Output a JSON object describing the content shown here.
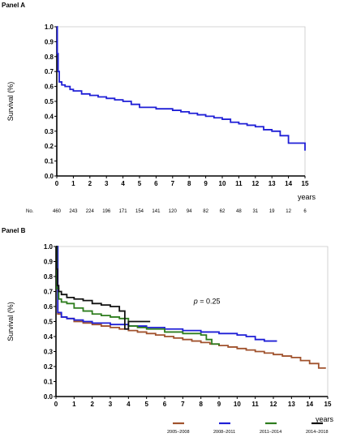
{
  "chart_data": [
    {
      "panel_label": "Panel A",
      "type": "line",
      "ylabel": "Survival (%)",
      "xlabel": "years",
      "xlim": [
        0,
        15
      ],
      "ylim": [
        0,
        1
      ],
      "x_ticks": [
        0,
        1,
        2,
        3,
        4,
        5,
        6,
        7,
        8,
        9,
        10,
        11,
        12,
        13,
        14,
        15
      ],
      "y_ticks": [
        0.0,
        0.1,
        0.2,
        0.3,
        0.4,
        0.5,
        0.6,
        0.7,
        0.8,
        0.9,
        1.0
      ],
      "colors": {
        "series": "#1f1fd6",
        "axis": "#000000",
        "frame": "#c8c8c8"
      },
      "series": [
        {
          "color": "#1f1fd6",
          "x": [
            0,
            0.03,
            0.08,
            0.15,
            0.3,
            0.5,
            0.8,
            1.0,
            1.5,
            2.0,
            2.5,
            3.0,
            3.5,
            4.0,
            4.5,
            5.0,
            6.0,
            7.0,
            7.5,
            8.0,
            8.5,
            9.0,
            9.5,
            10.0,
            10.5,
            11.0,
            11.5,
            12.0,
            12.5,
            13.0,
            13.5,
            14.0,
            14.5,
            14.9,
            15.0
          ],
          "y": [
            1.0,
            0.82,
            0.7,
            0.63,
            0.61,
            0.6,
            0.58,
            0.57,
            0.55,
            0.54,
            0.53,
            0.52,
            0.51,
            0.5,
            0.48,
            0.46,
            0.45,
            0.44,
            0.43,
            0.42,
            0.41,
            0.4,
            0.39,
            0.38,
            0.36,
            0.35,
            0.34,
            0.33,
            0.31,
            0.3,
            0.27,
            0.22,
            0.22,
            0.22,
            0.17
          ]
        }
      ],
      "risk_table": {
        "label": "No.",
        "x": [
          0,
          1,
          2,
          3,
          4,
          5,
          6,
          7,
          8,
          9,
          10,
          11,
          12,
          13,
          14,
          15
        ],
        "values": [
          "460",
          "243",
          "224",
          "196",
          "171",
          "154",
          "141",
          "120",
          "94",
          "82",
          "62",
          "48",
          "31",
          "19",
          "12",
          "6"
        ]
      }
    },
    {
      "panel_label": "Panel B",
      "type": "line",
      "ylabel": "Survival (%)",
      "xlabel": "years",
      "xlim": [
        0,
        15
      ],
      "ylim": [
        0,
        1
      ],
      "x_ticks": [
        0,
        1,
        2,
        3,
        4,
        5,
        6,
        7,
        8,
        9,
        10,
        11,
        12,
        13,
        14,
        15
      ],
      "y_ticks": [
        0.0,
        0.1,
        0.2,
        0.3,
        0.4,
        0.5,
        0.6,
        0.7,
        0.8,
        0.9,
        1.0
      ],
      "annotation": {
        "italic": "p",
        "text": " = 0.25",
        "x": 7.6,
        "y": 0.62
      },
      "legend_position": "bottom",
      "series": [
        {
          "name": "2005–2008",
          "color": "#a0522d",
          "x": [
            0,
            0.1,
            0.3,
            0.6,
            1.0,
            1.5,
            2.0,
            2.5,
            3.0,
            3.5,
            4.0,
            4.5,
            5.0,
            5.5,
            6.0,
            6.5,
            7.0,
            7.5,
            8.0,
            8.5,
            9.0,
            9.5,
            10.0,
            10.5,
            11.0,
            11.5,
            12.0,
            12.5,
            13.0,
            13.5,
            14.0,
            14.5,
            14.9
          ],
          "y": [
            1.0,
            0.55,
            0.53,
            0.52,
            0.5,
            0.49,
            0.48,
            0.47,
            0.46,
            0.45,
            0.44,
            0.43,
            0.42,
            0.41,
            0.4,
            0.39,
            0.38,
            0.37,
            0.36,
            0.35,
            0.34,
            0.33,
            0.32,
            0.31,
            0.3,
            0.29,
            0.28,
            0.27,
            0.26,
            0.24,
            0.22,
            0.19,
            0.19
          ]
        },
        {
          "name": "2008–2011",
          "color": "#1f1fd6",
          "x": [
            0,
            0.1,
            0.3,
            0.6,
            1.0,
            1.5,
            2.0,
            3.0,
            4.0,
            5.0,
            6.0,
            7.0,
            8.0,
            9.0,
            10.0,
            10.5,
            11.0,
            11.5,
            12.2
          ],
          "y": [
            1.0,
            0.56,
            0.53,
            0.52,
            0.51,
            0.5,
            0.49,
            0.48,
            0.47,
            0.46,
            0.45,
            0.44,
            0.43,
            0.42,
            0.41,
            0.4,
            0.38,
            0.37,
            0.37
          ]
        },
        {
          "name": "2011–2014",
          "color": "#2e7d1e",
          "x": [
            0,
            0.05,
            0.15,
            0.3,
            0.6,
            1.0,
            1.5,
            2.0,
            2.5,
            3.0,
            3.5,
            4.0,
            4.5,
            5.0,
            6.0,
            7.0,
            8.0,
            8.3,
            8.6,
            9.0
          ],
          "y": [
            1.0,
            0.72,
            0.65,
            0.63,
            0.62,
            0.59,
            0.57,
            0.55,
            0.54,
            0.53,
            0.52,
            0.47,
            0.46,
            0.45,
            0.43,
            0.42,
            0.41,
            0.38,
            0.35,
            0.34
          ]
        },
        {
          "name": "2014–2018",
          "color": "#111111",
          "x": [
            0,
            0.03,
            0.08,
            0.15,
            0.3,
            0.6,
            1.0,
            1.5,
            2.0,
            2.5,
            3.0,
            3.5,
            3.8,
            4.0,
            4.5,
            5.2
          ],
          "y": [
            1.0,
            0.85,
            0.74,
            0.7,
            0.68,
            0.66,
            0.65,
            0.64,
            0.62,
            0.61,
            0.6,
            0.57,
            0.45,
            0.5,
            0.5,
            0.5
          ]
        }
      ]
    }
  ]
}
